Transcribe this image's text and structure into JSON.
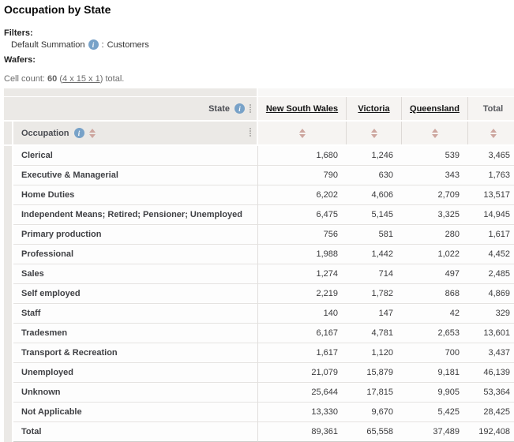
{
  "header": {
    "title": "Occupation by State",
    "filters": {
      "label": "Filters:",
      "item": {
        "name": "Default Summation",
        "separator": ":",
        "value": "Customers"
      }
    },
    "wafers_label": "Wafers:",
    "cell_count": {
      "prefix": "Cell count:",
      "count": "60",
      "open_paren": "(",
      "link": "4 x 15 x 1",
      "close_paren": ")",
      "suffix": "total."
    }
  },
  "table": {
    "column_axis_label": "State",
    "row_axis_label": "Occupation",
    "columns": [
      {
        "label": "New South Wales",
        "underlined": true
      },
      {
        "label": "Victoria",
        "underlined": true
      },
      {
        "label": "Queensland",
        "underlined": true
      },
      {
        "label": "Total",
        "underlined": false
      }
    ],
    "rows": [
      {
        "label": "Clerical",
        "values": [
          "1,680",
          "1,246",
          "539",
          "3,465"
        ]
      },
      {
        "label": "Executive & Managerial",
        "values": [
          "790",
          "630",
          "343",
          "1,763"
        ]
      },
      {
        "label": "Home Duties",
        "values": [
          "6,202",
          "4,606",
          "2,709",
          "13,517"
        ]
      },
      {
        "label": "Independent Means; Retired; Pensioner; Unemployed",
        "values": [
          "6,475",
          "5,145",
          "3,325",
          "14,945"
        ]
      },
      {
        "label": "Primary production",
        "values": [
          "756",
          "581",
          "280",
          "1,617"
        ]
      },
      {
        "label": "Professional",
        "values": [
          "1,988",
          "1,442",
          "1,022",
          "4,452"
        ]
      },
      {
        "label": "Sales",
        "values": [
          "1,274",
          "714",
          "497",
          "2,485"
        ]
      },
      {
        "label": "Self employed",
        "values": [
          "2,219",
          "1,782",
          "868",
          "4,869"
        ]
      },
      {
        "label": "Staff",
        "values": [
          "140",
          "147",
          "42",
          "329"
        ]
      },
      {
        "label": "Tradesmen",
        "values": [
          "6,167",
          "4,781",
          "2,653",
          "13,601"
        ]
      },
      {
        "label": "Transport & Recreation",
        "values": [
          "1,617",
          "1,120",
          "700",
          "3,437"
        ]
      },
      {
        "label": "Unemployed",
        "values": [
          "21,079",
          "15,879",
          "9,181",
          "46,139"
        ]
      },
      {
        "label": "Unknown",
        "values": [
          "25,644",
          "17,815",
          "9,905",
          "53,364"
        ]
      },
      {
        "label": "Not Applicable",
        "values": [
          "13,330",
          "9,670",
          "5,425",
          "28,425"
        ]
      },
      {
        "label": "Total",
        "values": [
          "89,361",
          "65,558",
          "37,489",
          "192,408"
        ]
      }
    ]
  },
  "colors": {
    "header_bg": "#ebe9e6",
    "data_header_bg": "#f6f4f2",
    "cell_bg": "#fdfdfd",
    "info_icon_blue": "#78a2c8",
    "sort_arrow_rose": "#cda69f",
    "link_gray": "#6b6b6b"
  }
}
